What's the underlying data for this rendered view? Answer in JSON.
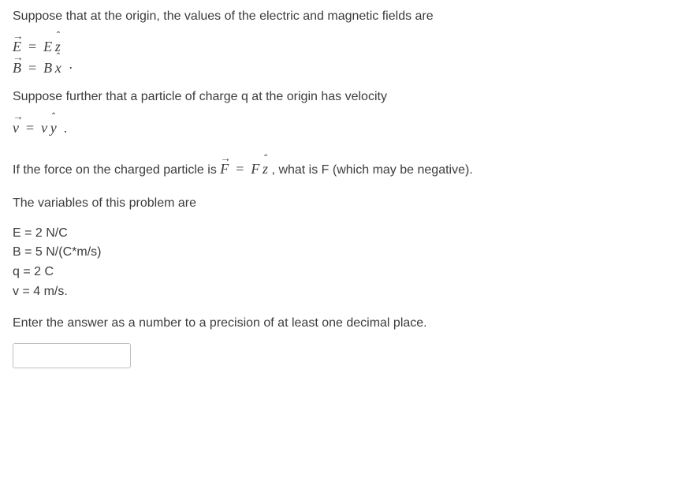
{
  "text_color": "#3c3c3c",
  "background_color": "#ffffff",
  "body_font_size": 16,
  "math_font_size": 18,
  "intro": "Suppose that at the origin, the values of the electric and magnetic fields are",
  "eq_E": {
    "lhs_sym": "E",
    "rhs_scalar": "E",
    "rhs_hat": "z"
  },
  "eq_B": {
    "lhs_sym": "B",
    "rhs_scalar": "B",
    "rhs_hat": "x",
    "trailing_dot": "·"
  },
  "charge_sentence": "Suppose further that a particle of charge q at the origin has velocity",
  "eq_v": {
    "lhs_sym": "v",
    "rhs_scalar": "v",
    "rhs_hat": "y",
    "trailing_dot": "."
  },
  "force_sentence_pre": "If the force on the charged particle is ",
  "eq_F": {
    "lhs_sym": "F",
    "rhs_scalar": "F",
    "rhs_hat": "z"
  },
  "force_sentence_post": " , what is F (which may be negative).",
  "vars_heading": "The variables of this problem are",
  "variables": [
    "E = 2 N/C",
    "B = 5 N/(C*m/s)",
    "q = 2 C",
    "v = 4 m/s."
  ],
  "precision_instruction": "Enter the answer as a number to a precision of at least one decimal place.",
  "answer_placeholder": ""
}
